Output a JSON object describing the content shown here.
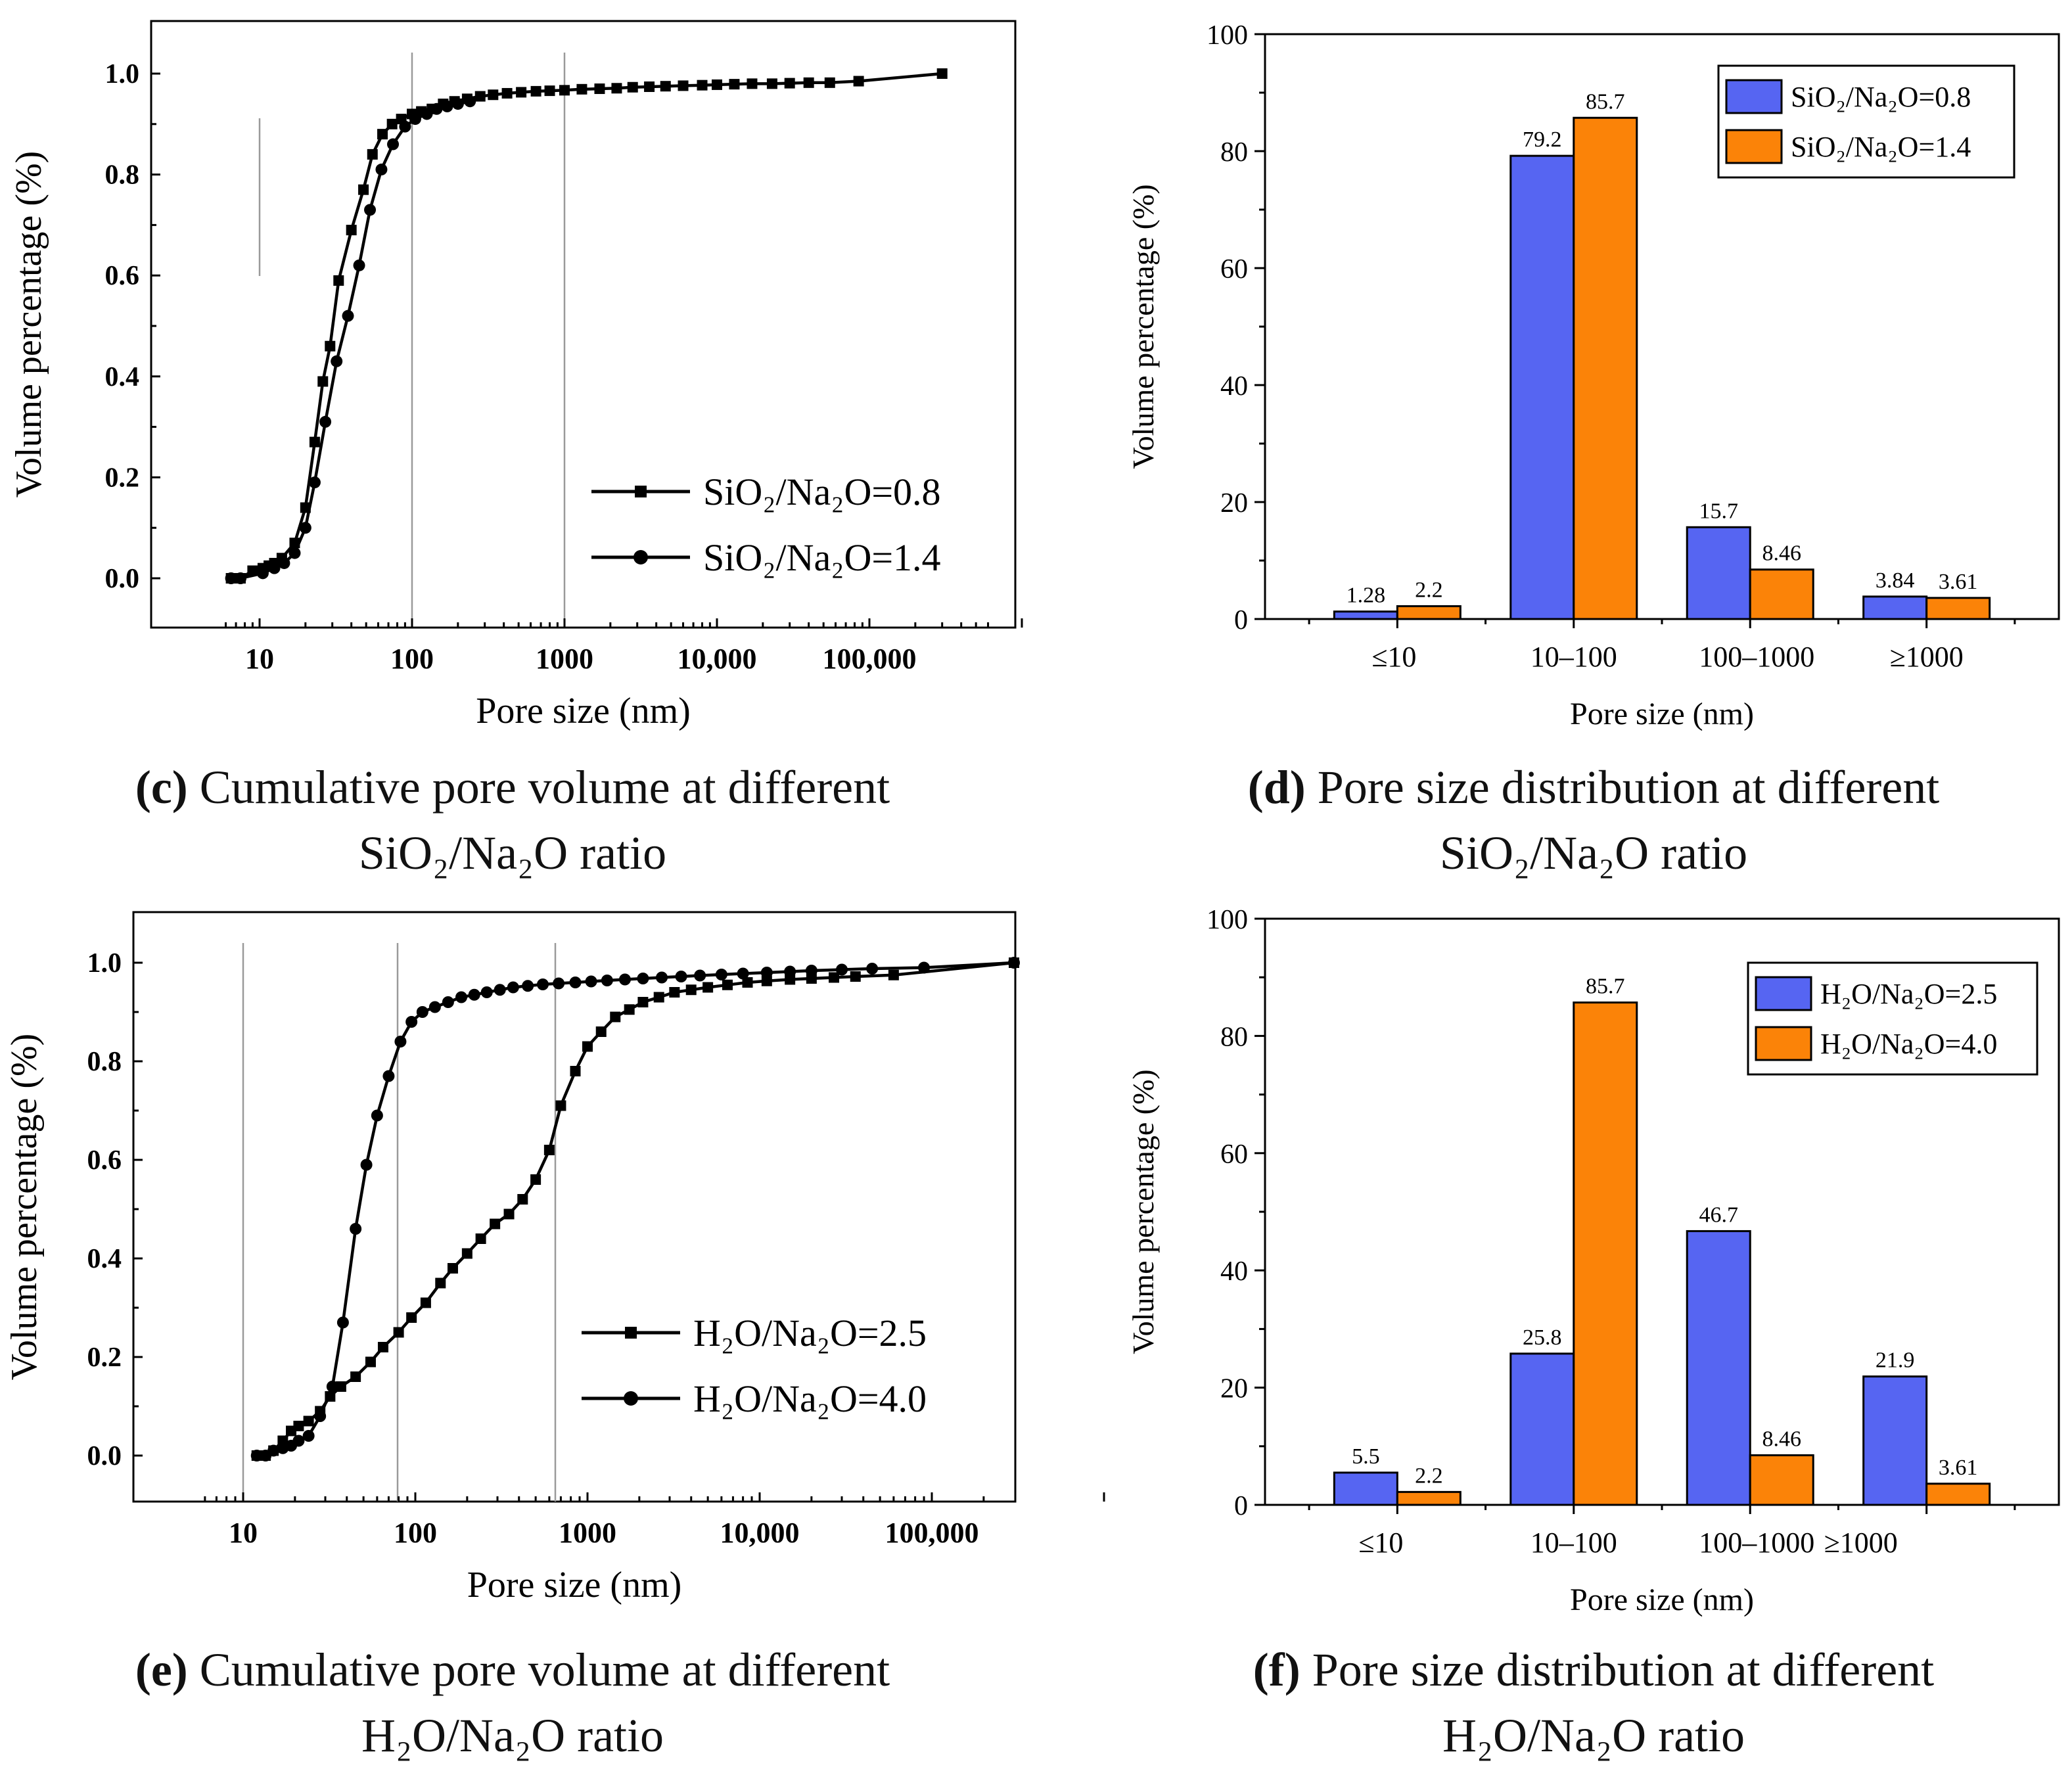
{
  "chart_data": [
    {
      "panel": "c",
      "type": "line",
      "xscale": "log",
      "xlabel": "Pore size (nm)",
      "ylabel": "Volume percentage (%)",
      "xticks": [
        "10",
        "100",
        "1000",
        "10,000",
        "100,000"
      ],
      "yticks": [
        "0.0",
        "0.2",
        "0.4",
        "0.6",
        "0.8",
        "1.0"
      ],
      "ylim": [
        -0.1,
        1.1
      ],
      "caption_bold": "(c)",
      "caption_line1": "Cumulative pore volume at different",
      "caption_line2": "SiO₂/Na₂O ratio",
      "series": [
        {
          "name": "SiO₂/Na₂O=0.8",
          "marker": "square",
          "x": [
            6.5,
            7.5,
            9,
            10.5,
            11.5,
            12.5,
            14,
            17,
            20,
            23,
            26,
            29,
            33,
            40,
            48,
            55,
            64,
            74,
            85,
            100,
            115,
            135,
            160,
            190,
            230,
            280,
            340,
            420,
            520,
            650,
            800,
            1000,
            1300,
            1700,
            2200,
            2800,
            3600,
            4600,
            6000,
            8000,
            10000,
            13000,
            17000,
            23000,
            30000,
            40000,
            55000,
            85000,
            300000
          ],
          "y": [
            0.0,
            0.0,
            0.015,
            0.02,
            0.025,
            0.03,
            0.04,
            0.07,
            0.14,
            0.27,
            0.39,
            0.46,
            0.59,
            0.69,
            0.77,
            0.84,
            0.88,
            0.9,
            0.91,
            0.92,
            0.925,
            0.93,
            0.94,
            0.945,
            0.95,
            0.955,
            0.958,
            0.961,
            0.963,
            0.965,
            0.966,
            0.967,
            0.969,
            0.97,
            0.971,
            0.973,
            0.974,
            0.975,
            0.976,
            0.977,
            0.978,
            0.979,
            0.98,
            0.98,
            0.981,
            0.982,
            0.982,
            0.985,
            1.0
          ]
        },
        {
          "name": "SiO₂/Na₂O=1.4",
          "marker": "circle",
          "x": [
            6.5,
            7.5,
            10.5,
            12.5,
            14.5,
            17,
            20,
            23,
            27,
            32,
            38,
            45,
            53,
            63,
            75,
            90,
            105,
            125,
            145,
            170,
            200,
            240
          ],
          "y": [
            0.0,
            0.0,
            0.01,
            0.02,
            0.03,
            0.05,
            0.1,
            0.19,
            0.31,
            0.43,
            0.52,
            0.62,
            0.73,
            0.81,
            0.86,
            0.895,
            0.91,
            0.92,
            0.93,
            0.935,
            0.94,
            0.945
          ]
        }
      ]
    },
    {
      "panel": "d",
      "type": "bar",
      "xlabel": "Pore size (nm)",
      "ylabel": "Volume percentage (%)",
      "categories": [
        "≤10",
        "10–100",
        "100–1000",
        "≥1000"
      ],
      "ylim": [
        0,
        100
      ],
      "yticks": [
        "0",
        "20",
        "40",
        "60",
        "80",
        "100"
      ],
      "caption_bold": "(d)",
      "caption_line1": "Pore size distribution at different",
      "caption_line2": "SiO₂/Na₂O ratio",
      "series": [
        {
          "name": "SiO₂/Na₂O=0.8",
          "color": "#5665f2",
          "values": [
            1.28,
            79.2,
            15.7,
            3.84
          ],
          "labels": [
            "1.28",
            "79.2",
            "15.7",
            "3.84"
          ]
        },
        {
          "name": "SiO₂/Na₂O=1.4",
          "color": "#fb8308",
          "values": [
            2.2,
            85.7,
            8.46,
            3.61
          ],
          "labels": [
            "2.2",
            "85.7",
            "8.46",
            "3.61"
          ]
        }
      ]
    },
    {
      "panel": "e",
      "type": "line",
      "xscale": "log",
      "xlabel": "Pore size (nm)",
      "ylabel": "Volume percentage (%)",
      "xticks": [
        "10",
        "100",
        "1000",
        "10,000",
        "100,000"
      ],
      "yticks": [
        "0.0",
        "0.2",
        "0.4",
        "0.6",
        "0.8",
        "1.0"
      ],
      "ylim": [
        -0.1,
        1.1
      ],
      "caption_bold": "(e)",
      "caption_line1": "Cumulative pore volume at different",
      "caption_line2": "H₂O/Na₂O ratio",
      "series": [
        {
          "name": "H₂O/Na₂O=2.5",
          "marker": "square",
          "x": [
            12,
            13.5,
            15,
            17,
            19,
            21,
            24,
            28,
            32,
            37,
            45,
            55,
            65,
            80,
            95,
            115,
            140,
            165,
            200,
            240,
            290,
            350,
            420,
            500,
            600,
            700,
            850,
            1000,
            1200,
            1450,
            1750,
            2100,
            2600,
            3200,
            4000,
            5000,
            6500,
            8500,
            11000,
            15000,
            20000,
            27000,
            36000,
            60000,
            300000
          ],
          "y": [
            0.0,
            0.0,
            0.01,
            0.03,
            0.05,
            0.06,
            0.07,
            0.09,
            0.12,
            0.14,
            0.16,
            0.19,
            0.22,
            0.25,
            0.28,
            0.31,
            0.35,
            0.38,
            0.41,
            0.44,
            0.47,
            0.49,
            0.52,
            0.56,
            0.62,
            0.71,
            0.78,
            0.83,
            0.86,
            0.89,
            0.905,
            0.92,
            0.93,
            0.94,
            0.945,
            0.95,
            0.955,
            0.96,
            0.963,
            0.966,
            0.968,
            0.97,
            0.972,
            0.975,
            1.0
          ]
        },
        {
          "name": "H₂O/Na₂O=4.0",
          "marker": "circle",
          "x": [
            12,
            13.5,
            15,
            17,
            19,
            21,
            24,
            28,
            33,
            38,
            45,
            52,
            60,
            70,
            82,
            95,
            110,
            130,
            155,
            185,
            220,
            260,
            310,
            370,
            450,
            550,
            680,
            850,
            1050,
            1300,
            1650,
            2100,
            2700,
            3500,
            4500,
            6000,
            8000,
            11000,
            15000,
            20000,
            30000,
            45000,
            90000,
            300000
          ],
          "y": [
            0.0,
            0.0,
            0.01,
            0.015,
            0.02,
            0.03,
            0.04,
            0.08,
            0.14,
            0.27,
            0.46,
            0.59,
            0.69,
            0.77,
            0.84,
            0.88,
            0.9,
            0.91,
            0.92,
            0.93,
            0.935,
            0.94,
            0.945,
            0.95,
            0.953,
            0.956,
            0.958,
            0.96,
            0.962,
            0.964,
            0.966,
            0.968,
            0.97,
            0.972,
            0.974,
            0.976,
            0.978,
            0.98,
            0.982,
            0.984,
            0.986,
            0.988,
            0.99,
            1.0
          ]
        }
      ]
    },
    {
      "panel": "f",
      "type": "bar",
      "xlabel": "Pore size (nm)",
      "ylabel": "Volume percentage (%)",
      "categories": [
        "≤10",
        "10–100",
        "100–1000",
        "≥1000"
      ],
      "ylim": [
        0,
        100
      ],
      "yticks": [
        "0",
        "20",
        "40",
        "60",
        "80",
        "100"
      ],
      "caption_bold": "(f)",
      "caption_line1": "Pore size distribution at different",
      "caption_line2": "H₂O/Na₂O ratio",
      "series": [
        {
          "name": "H₂O/Na₂O=2.5",
          "color": "#5665f2",
          "values": [
            5.5,
            25.8,
            46.7,
            21.9
          ],
          "labels": [
            "5.5",
            "25.8",
            "46.7",
            "21.9"
          ]
        },
        {
          "name": "H₂O/Na₂O=4.0",
          "color": "#fb8308",
          "values": [
            2.2,
            85.7,
            8.46,
            3.61
          ],
          "labels": [
            "2.2",
            "85.7",
            "8.46",
            "3.61"
          ]
        }
      ]
    }
  ]
}
